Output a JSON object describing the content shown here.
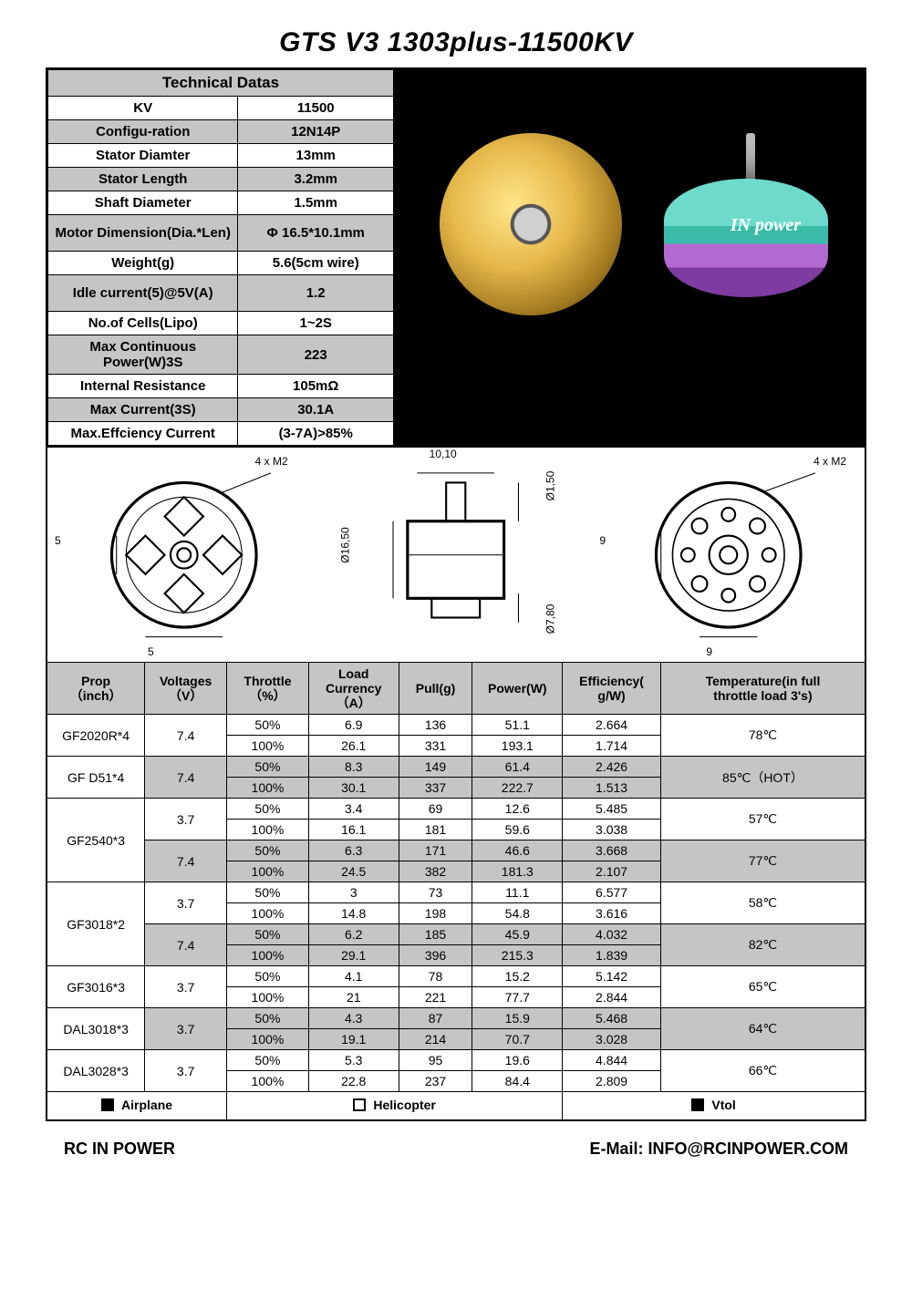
{
  "title": "GTS V3 1303plus-11500KV",
  "tech_header": "Technical Datas",
  "tech": [
    {
      "label": "KV",
      "val": "11500",
      "alt": false
    },
    {
      "label": "Configu-ration",
      "val": "12N14P",
      "alt": true
    },
    {
      "label": "Stator Diamter",
      "val": "13mm",
      "alt": false
    },
    {
      "label": "Stator Length",
      "val": "3.2mm",
      "alt": true
    },
    {
      "label": "Shaft Diameter",
      "val": "1.5mm",
      "alt": false
    },
    {
      "label": "Motor Dimension(Dia.*Len)",
      "val": "Φ 16.5*10.1mm",
      "alt": true,
      "high": true
    },
    {
      "label": "Weight(g)",
      "val": "5.6(5cm wire)",
      "alt": false
    },
    {
      "label": "Idle current(5)@5V(A)",
      "val": "1.2",
      "alt": true,
      "high": true
    },
    {
      "label": "No.of Cells(Lipo)",
      "val": "1~2S",
      "alt": false
    },
    {
      "label": "Max Continuous Power(W)3S",
      "val": "223",
      "alt": true,
      "high": true
    },
    {
      "label": "Internal Resistance",
      "val": "105mΩ",
      "alt": false
    },
    {
      "label": "Max Current(3S)",
      "val": "30.1A",
      "alt": true
    },
    {
      "label": "Max.Effciency Current",
      "val": "(3-7A)>85%",
      "alt": false
    }
  ],
  "motor_logo": "IN power",
  "diagram_labels": {
    "screws_front": "4 x M2",
    "dim_5a": "5",
    "dim_5b": "5",
    "top_10_10": "10,10",
    "d16_50": "Ø16,50",
    "d1_50": "Ø1,50",
    "d7_80": "Ø7,80",
    "screws_back": "4 x M2",
    "dim_9a": "9",
    "dim_9b": "9"
  },
  "perf_headers": {
    "prop": "Prop\n（inch）",
    "volt": "Voltages\n（V）",
    "throttle": "Throttle\n（%）",
    "load": "Load\nCurrency\n（A）",
    "pull": "Pull(g)",
    "power": "Power(W)",
    "eff": "Efficiency(\ng/W)",
    "temp": "Temperature(in full\nthrottle load 3's)"
  },
  "perf_groups": [
    {
      "prop": "GF2020R*4",
      "volt": "7.4",
      "temp": "78℃",
      "shade": false,
      "rows": [
        {
          "t": "50%",
          "a": "6.9",
          "p": "136",
          "w": "51.1",
          "e": "2.664"
        },
        {
          "t": "100%",
          "a": "26.1",
          "p": "331",
          "w": "193.1",
          "e": "1.714"
        }
      ]
    },
    {
      "prop": "GF D51*4",
      "volt": "7.4",
      "temp": "85℃（HOT）",
      "shade": true,
      "rows": [
        {
          "t": "50%",
          "a": "8.3",
          "p": "149",
          "w": "61.4",
          "e": "2.426"
        },
        {
          "t": "100%",
          "a": "30.1",
          "p": "337",
          "w": "222.7",
          "e": "1.513"
        }
      ]
    },
    {
      "prop": "GF2540*3",
      "sub": [
        {
          "volt": "3.7",
          "temp": "57℃",
          "shade": false,
          "rows": [
            {
              "t": "50%",
              "a": "3.4",
              "p": "69",
              "w": "12.6",
              "e": "5.485"
            },
            {
              "t": "100%",
              "a": "16.1",
              "p": "181",
              "w": "59.6",
              "e": "3.038"
            }
          ]
        },
        {
          "volt": "7.4",
          "temp": "77℃",
          "shade": true,
          "rows": [
            {
              "t": "50%",
              "a": "6.3",
              "p": "171",
              "w": "46.6",
              "e": "3.668"
            },
            {
              "t": "100%",
              "a": "24.5",
              "p": "382",
              "w": "181.3",
              "e": "2.107"
            }
          ]
        }
      ]
    },
    {
      "prop": "GF3018*2",
      "sub": [
        {
          "volt": "3.7",
          "temp": "58℃",
          "shade": false,
          "rows": [
            {
              "t": "50%",
              "a": "3",
              "p": "73",
              "w": "11.1",
              "e": "6.577"
            },
            {
              "t": "100%",
              "a": "14.8",
              "p": "198",
              "w": "54.8",
              "e": "3.616"
            }
          ]
        },
        {
          "volt": "7.4",
          "temp": "82℃",
          "shade": true,
          "rows": [
            {
              "t": "50%",
              "a": "6.2",
              "p": "185",
              "w": "45.9",
              "e": "4.032"
            },
            {
              "t": "100%",
              "a": "29.1",
              "p": "396",
              "w": "215.3",
              "e": "1.839"
            }
          ]
        }
      ]
    },
    {
      "prop": "GF3016*3",
      "volt": "3.7",
      "temp": "65℃",
      "shade": false,
      "rows": [
        {
          "t": "50%",
          "a": "4.1",
          "p": "78",
          "w": "15.2",
          "e": "5.142"
        },
        {
          "t": "100%",
          "a": "21",
          "p": "221",
          "w": "77.7",
          "e": "2.844"
        }
      ]
    },
    {
      "prop": "DAL3018*3",
      "volt": "3.7",
      "temp": "64℃",
      "shade": true,
      "rows": [
        {
          "t": "50%",
          "a": "4.3",
          "p": "87",
          "w": "15.9",
          "e": "5.468"
        },
        {
          "t": "100%",
          "a": "19.1",
          "p": "214",
          "w": "70.7",
          "e": "3.028"
        }
      ]
    },
    {
      "prop": "DAL3028*3",
      "volt": "3.7",
      "temp": "66℃",
      "shade": false,
      "rows": [
        {
          "t": "50%",
          "a": "5.3",
          "p": "95",
          "w": "19.6",
          "e": "4.844"
        },
        {
          "t": "100%",
          "a": "22.8",
          "p": "237",
          "w": "84.4",
          "e": "2.809"
        }
      ]
    }
  ],
  "legend": {
    "airplane": "Airplane",
    "helicopter": "Helicopter",
    "vtol": "Vtol"
  },
  "footer": {
    "brand": "RC IN POWER",
    "email_label": "E-Mail: ",
    "email": "INFO@RCINPOWER.COM"
  },
  "colors": {
    "header_bg": "#c5c5c5",
    "border": "#000000",
    "page_bg": "#ffffff"
  }
}
